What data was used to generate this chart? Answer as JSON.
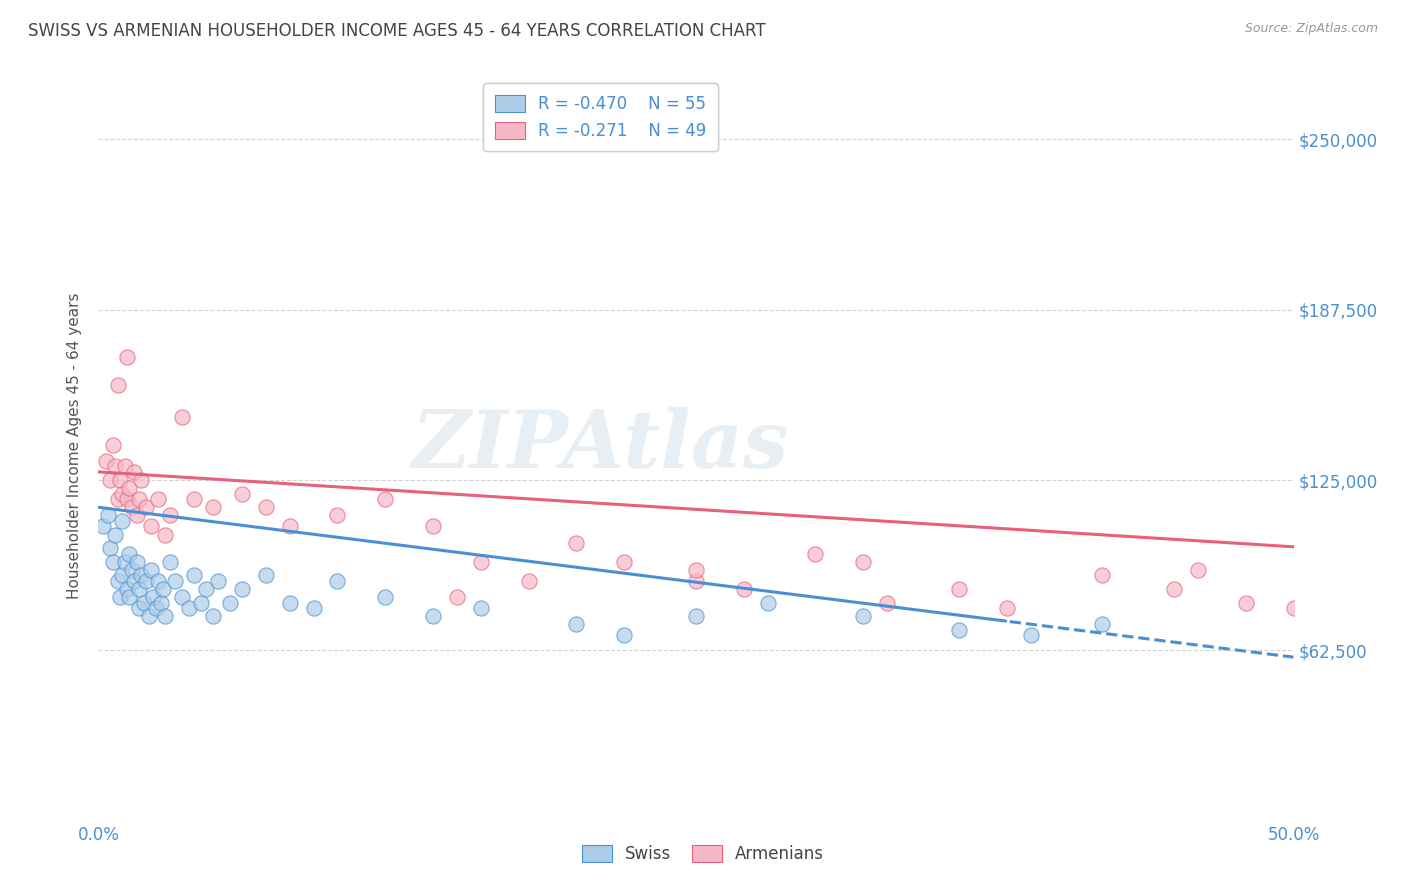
{
  "title": "SWISS VS ARMENIAN HOUSEHOLDER INCOME AGES 45 - 64 YEARS CORRELATION CHART",
  "source": "Source: ZipAtlas.com",
  "ylabel": "Householder Income Ages 45 - 64 years",
  "xlim": [
    0.0,
    0.5
  ],
  "ylim": [
    0,
    275000
  ],
  "yticks": [
    0,
    62500,
    125000,
    187500,
    250000
  ],
  "ytick_labels": [
    "",
    "$62,500",
    "$125,000",
    "$187,500",
    "$250,000"
  ],
  "xticks": [
    0.0,
    0.1,
    0.2,
    0.3,
    0.4,
    0.5
  ],
  "xtick_labels": [
    "0.0%",
    "",
    "",
    "",
    "",
    "50.0%"
  ],
  "swiss_R": -0.47,
  "swiss_N": 55,
  "armenian_R": -0.271,
  "armenian_N": 49,
  "swiss_color": "#aecce8",
  "armenian_color": "#f5b8c8",
  "swiss_line_color": "#4a8fd4",
  "armenian_line_color": "#e8607a",
  "watermark": "ZIPAtlas",
  "background_color": "#ffffff",
  "swiss_line_intercept": 115000,
  "swiss_line_slope": -110000,
  "armenian_line_intercept": 128000,
  "armenian_line_slope": -55000,
  "swiss_data_x": [
    0.002,
    0.004,
    0.005,
    0.006,
    0.007,
    0.008,
    0.009,
    0.01,
    0.01,
    0.011,
    0.012,
    0.013,
    0.013,
    0.014,
    0.015,
    0.016,
    0.017,
    0.017,
    0.018,
    0.019,
    0.02,
    0.021,
    0.022,
    0.023,
    0.024,
    0.025,
    0.026,
    0.027,
    0.028,
    0.03,
    0.032,
    0.035,
    0.038,
    0.04,
    0.043,
    0.045,
    0.048,
    0.05,
    0.055,
    0.06,
    0.07,
    0.08,
    0.09,
    0.1,
    0.12,
    0.14,
    0.16,
    0.2,
    0.22,
    0.25,
    0.28,
    0.32,
    0.36,
    0.39,
    0.42
  ],
  "swiss_data_y": [
    108000,
    112000,
    100000,
    95000,
    105000,
    88000,
    82000,
    110000,
    90000,
    95000,
    85000,
    98000,
    82000,
    92000,
    88000,
    95000,
    78000,
    85000,
    90000,
    80000,
    88000,
    75000,
    92000,
    82000,
    78000,
    88000,
    80000,
    85000,
    75000,
    95000,
    88000,
    82000,
    78000,
    90000,
    80000,
    85000,
    75000,
    88000,
    80000,
    85000,
    90000,
    80000,
    78000,
    88000,
    82000,
    75000,
    78000,
    72000,
    68000,
    75000,
    80000,
    75000,
    70000,
    68000,
    72000
  ],
  "armenian_data_x": [
    0.003,
    0.005,
    0.006,
    0.007,
    0.008,
    0.009,
    0.01,
    0.011,
    0.012,
    0.013,
    0.014,
    0.015,
    0.016,
    0.017,
    0.018,
    0.02,
    0.022,
    0.025,
    0.028,
    0.03,
    0.035,
    0.04,
    0.048,
    0.06,
    0.07,
    0.08,
    0.1,
    0.12,
    0.14,
    0.16,
    0.18,
    0.2,
    0.22,
    0.25,
    0.27,
    0.3,
    0.32,
    0.36,
    0.38,
    0.42,
    0.45,
    0.46,
    0.48,
    0.5,
    0.008,
    0.012,
    0.15,
    0.25,
    0.33
  ],
  "armenian_data_y": [
    132000,
    125000,
    138000,
    130000,
    118000,
    125000,
    120000,
    130000,
    118000,
    122000,
    115000,
    128000,
    112000,
    118000,
    125000,
    115000,
    108000,
    118000,
    105000,
    112000,
    148000,
    118000,
    115000,
    120000,
    115000,
    108000,
    112000,
    118000,
    108000,
    95000,
    88000,
    102000,
    95000,
    88000,
    85000,
    98000,
    95000,
    85000,
    78000,
    90000,
    85000,
    92000,
    80000,
    78000,
    160000,
    170000,
    82000,
    92000,
    80000
  ]
}
